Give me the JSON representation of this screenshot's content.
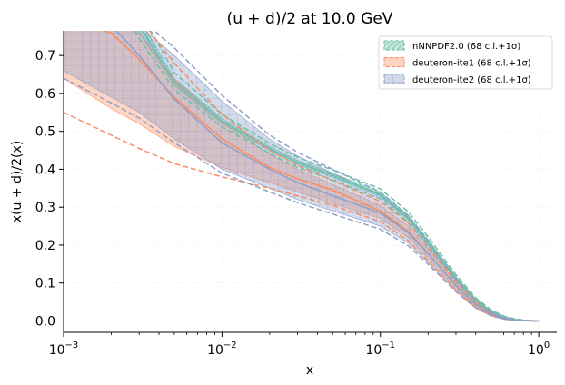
{
  "chart_data": {
    "type": "area",
    "title": "(u + d)/2 at 10.0 GeV",
    "xlabel": "x",
    "ylabel": "x(u + d)/2(x)",
    "xscale": "log",
    "xlim": [
      0.001,
      1.3
    ],
    "ylim": [
      -0.03,
      0.765
    ],
    "x_ticks": [
      {
        "value": 0.001,
        "base": "10",
        "exp": "−3"
      },
      {
        "value": 0.01,
        "base": "10",
        "exp": "−2"
      },
      {
        "value": 0.1,
        "base": "10",
        "exp": "−1"
      },
      {
        "value": 1,
        "base": "10",
        "exp": "0"
      }
    ],
    "y_ticks": [
      "0.0",
      "0.1",
      "0.2",
      "0.3",
      "0.4",
      "0.5",
      "0.6",
      "0.7"
    ],
    "legend_position": "top-right",
    "x": [
      0.001,
      0.002,
      0.003,
      0.005,
      0.01,
      0.02,
      0.03,
      0.05,
      0.1,
      0.15,
      0.2,
      0.3,
      0.4,
      0.5,
      0.6,
      0.7,
      0.8,
      0.9,
      1.0
    ],
    "series": [
      {
        "name": "nNNPDF2.0 (68 c.l.+1σ)",
        "color": "#66c2a5",
        "hatch": "diagonal",
        "upper": [
          null,
          0.95,
          0.8,
          0.64,
          0.535,
          0.46,
          0.424,
          0.39,
          0.34,
          0.28,
          0.215,
          0.118,
          0.058,
          0.027,
          0.012,
          0.005,
          0.002,
          0.001,
          0.0003
        ],
        "lower": [
          null,
          0.9,
          0.76,
          0.62,
          0.52,
          0.448,
          0.412,
          0.378,
          0.328,
          0.266,
          0.2,
          0.108,
          0.05,
          0.022,
          0.009,
          0.003,
          0.0012,
          0.0004,
          0.0001
        ],
        "central": [
          null,
          0.925,
          0.78,
          0.63,
          0.527,
          0.454,
          0.418,
          0.384,
          0.334,
          0.273,
          0.208,
          0.113,
          0.054,
          0.024,
          0.01,
          0.004,
          0.0016,
          0.0007,
          0.0002
        ],
        "dashed_upper": [
          null,
          0.96,
          0.82,
          0.655,
          0.545,
          0.468,
          0.432,
          0.398,
          0.348,
          0.288,
          0.222,
          0.122,
          0.061,
          0.029,
          0.013,
          0.006,
          0.0024,
          0.001,
          0.0003
        ],
        "dashed_lower": [
          null,
          0.88,
          0.745,
          0.61,
          0.512,
          0.442,
          0.405,
          0.372,
          0.322,
          0.26,
          0.195,
          0.104,
          0.048,
          0.02,
          0.008,
          0.003,
          0.001,
          0.0003,
          0.0001
        ]
      },
      {
        "name": "deuteron-ite1 (68 c.l.+1σ)",
        "color": "#fc8d62",
        "hatch": "none",
        "upper": [
          0.8,
          0.8,
          0.76,
          0.64,
          0.525,
          0.44,
          0.4,
          0.36,
          0.305,
          0.25,
          0.19,
          0.1,
          0.048,
          0.021,
          0.009,
          0.003,
          0.0012,
          0.0004,
          0.0001
        ],
        "lower": [
          0.64,
          0.56,
          0.52,
          0.46,
          0.405,
          0.365,
          0.34,
          0.31,
          0.27,
          0.22,
          0.165,
          0.085,
          0.038,
          0.016,
          0.006,
          0.002,
          0.0008,
          0.0003,
          0.0001
        ],
        "central": [
          0.8,
          0.76,
          0.69,
          0.59,
          0.48,
          0.405,
          0.375,
          0.345,
          0.29,
          0.236,
          0.178,
          0.093,
          0.043,
          0.018,
          0.0075,
          0.0025,
          0.001,
          0.0003,
          0.0001
        ],
        "dashed_upper": [
          0.95,
          0.9,
          0.8,
          0.68,
          0.545,
          0.45,
          0.41,
          0.37,
          0.315,
          0.258,
          0.196,
          0.104,
          0.05,
          0.022,
          0.009,
          0.003,
          0.0012,
          0.0004,
          0.0001
        ],
        "dashed_lower": [
          0.55,
          0.49,
          0.455,
          0.415,
          0.38,
          0.35,
          0.33,
          0.305,
          0.262,
          0.212,
          0.158,
          0.08,
          0.035,
          0.014,
          0.005,
          0.0018,
          0.0007,
          0.0002,
          0.0001
        ]
      },
      {
        "name": "deuteron-ite2 (68 c.l.+1σ)",
        "color": "#8da0cb",
        "hatch": "grid",
        "upper": [
          0.8,
          0.8,
          0.78,
          0.7,
          0.58,
          0.48,
          0.435,
          0.39,
          0.33,
          0.27,
          0.205,
          0.108,
          0.052,
          0.023,
          0.01,
          0.004,
          0.0015,
          0.0005,
          0.0001
        ],
        "lower": [
          0.66,
          0.59,
          0.55,
          0.48,
          0.4,
          0.35,
          0.32,
          0.29,
          0.25,
          0.205,
          0.155,
          0.08,
          0.036,
          0.015,
          0.006,
          0.002,
          0.0008,
          0.0003,
          0.0001
        ],
        "central": [
          0.8,
          0.78,
          0.7,
          0.585,
          0.47,
          0.4,
          0.365,
          0.33,
          0.285,
          0.233,
          0.178,
          0.093,
          0.043,
          0.018,
          0.0075,
          0.0025,
          0.001,
          0.0003,
          0.0001
        ],
        "dashed_upper": [
          0.9,
          0.84,
          0.8,
          0.72,
          0.595,
          0.49,
          0.445,
          0.4,
          0.34,
          0.278,
          0.212,
          0.112,
          0.054,
          0.024,
          0.01,
          0.004,
          0.0015,
          0.0005,
          0.0001
        ],
        "dashed_lower": [
          0.64,
          0.575,
          0.535,
          0.47,
          0.39,
          0.34,
          0.312,
          0.282,
          0.242,
          0.198,
          0.15,
          0.077,
          0.034,
          0.014,
          0.005,
          0.0018,
          0.0007,
          0.0002,
          0.0001
        ]
      }
    ]
  }
}
